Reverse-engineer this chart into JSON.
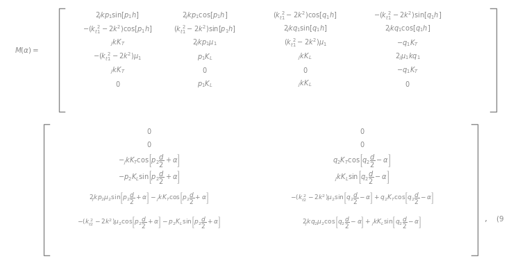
{
  "background_color": "#ffffff",
  "text_color": "#888888",
  "figsize": [
    7.36,
    3.92
  ],
  "dpi": 100,
  "gray": "#888888",
  "fs": 7.0
}
